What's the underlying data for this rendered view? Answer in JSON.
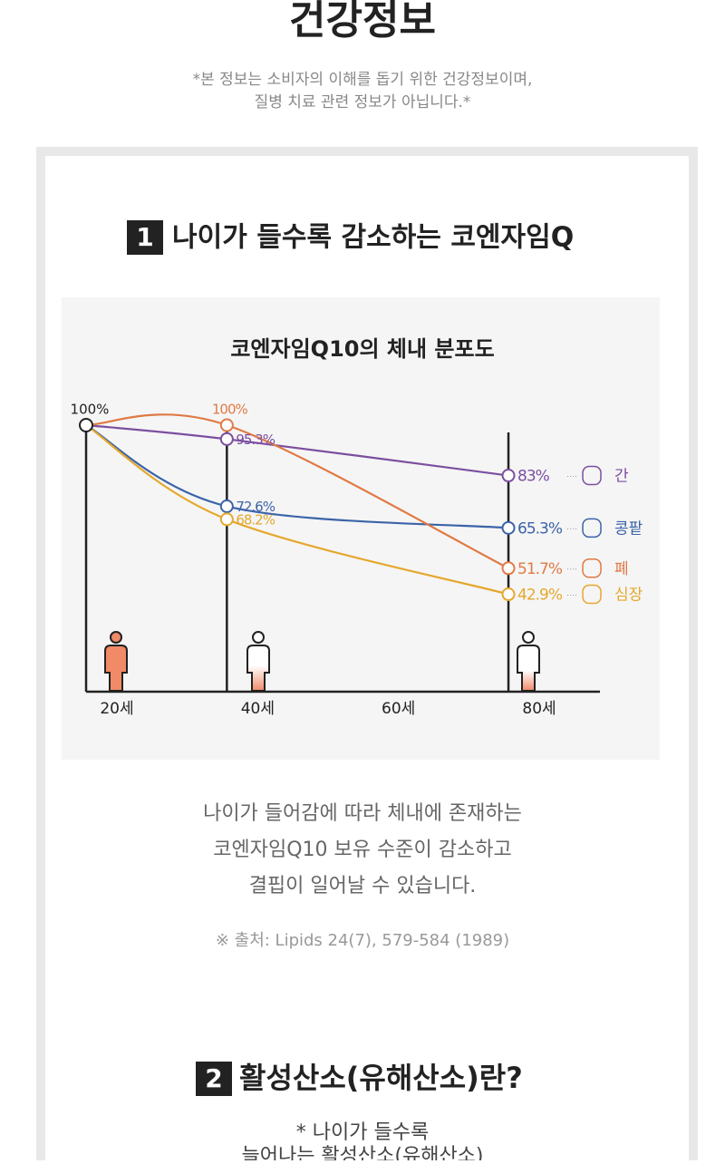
{
  "header": {
    "title": "건강정보",
    "notice": [
      "*본 정보는 소비자의 이해를 돕기 위한 건강정보이며,",
      "질병 치료 관련 정보가 아닙니다.*"
    ]
  },
  "section1": {
    "number": "1",
    "title": "나이가 들수록 감소하는 코엔자임Q"
  },
  "chart_data": {
    "type": "line",
    "title": "코엔자임Q10의 체내 분포도",
    "start_label": "100%",
    "x": [
      20,
      40,
      80
    ],
    "xticks": [
      {
        "value": 20,
        "label": "20세"
      },
      {
        "value": 40,
        "label": "40세"
      },
      {
        "value": 60,
        "label": "60세"
      },
      {
        "value": 80,
        "label": "80세"
      }
    ],
    "xlim": [
      20,
      93
    ],
    "ylim": [
      10,
      100
    ],
    "series": [
      {
        "name": "간",
        "color": "#7b4fa0",
        "values": [
          100,
          95.3,
          83
        ],
        "value_labels": [
          null,
          "95.3%",
          "83%"
        ]
      },
      {
        "name": "콩팥",
        "color": "#3b64a8",
        "values": [
          100,
          72.6,
          65.3
        ],
        "value_labels": [
          null,
          "72.6%",
          "65.3%"
        ]
      },
      {
        "name": "폐",
        "color": "#e07a45",
        "values": [
          100,
          100,
          51.7
        ],
        "value_labels": [
          null,
          "100%",
          "51.7%"
        ]
      },
      {
        "name": "심장",
        "color": "#e5a82e",
        "values": [
          100,
          68.2,
          42.9
        ],
        "value_labels": [
          null,
          "68.2%",
          "42.9%"
        ]
      }
    ]
  },
  "section1_text": {
    "lines": [
      "나이가 들어감에 따라 체내에 존재하는",
      "코엔자임Q10 보유 수준이 감소하고",
      "결핍이 일어날 수 있습니다."
    ],
    "source": "※ 출처: Lipids 24(7), 579-584 (1989)"
  },
  "section2": {
    "number": "2",
    "title": "활성산소(유해산소)란?",
    "lines": [
      "* 나이가 들수록",
      "늘어나는 활성산소(유해산소)"
    ]
  }
}
